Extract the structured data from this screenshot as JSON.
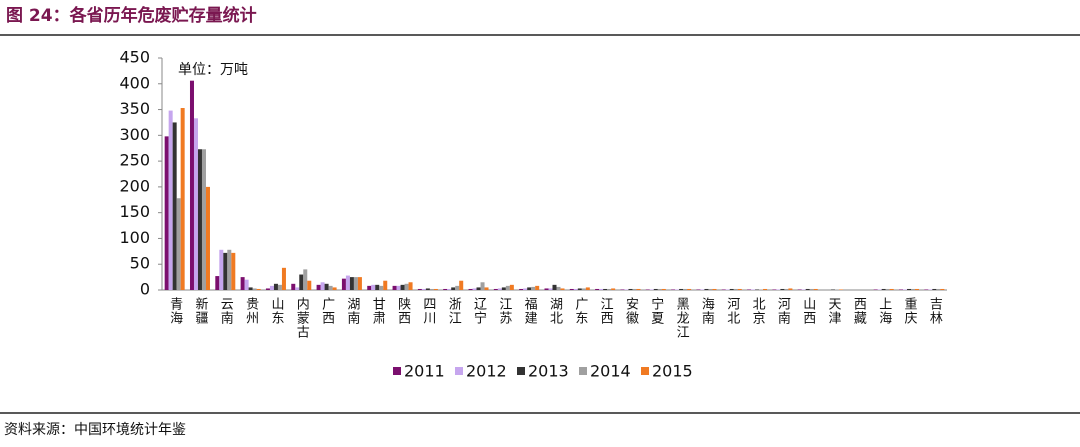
{
  "header": {
    "title": "图 24：各省历年危废贮存量统计"
  },
  "chart_data": {
    "type": "bar",
    "annotation": "单位：万吨",
    "categories": [
      "青海",
      "新疆",
      "云南",
      "贵州",
      "山东",
      "内蒙古",
      "广西",
      "湖南",
      "甘肃",
      "陕西",
      "四川",
      "浙江",
      "辽宁",
      "江苏",
      "福建",
      "湖北",
      "广东",
      "江西",
      "安徽",
      "宁夏",
      "黑龙江",
      "海南",
      "河北",
      "北京",
      "河南",
      "山西",
      "天津",
      "西藏",
      "上海",
      "重庆",
      "吉林"
    ],
    "series": [
      {
        "name": "2011",
        "color": "#7b0f6e",
        "values": [
          298,
          406,
          27,
          25,
          3,
          12,
          10,
          22,
          8,
          8,
          2,
          2,
          2,
          2,
          2,
          3,
          2,
          2,
          1,
          1,
          1,
          1,
          1,
          1,
          1,
          1,
          0,
          0,
          1,
          1,
          1
        ]
      },
      {
        "name": "2012",
        "color": "#c6a6ee",
        "values": [
          348,
          333,
          78,
          20,
          8,
          5,
          15,
          28,
          10,
          8,
          2,
          2,
          3,
          3,
          3,
          3,
          2,
          2,
          1,
          1,
          1,
          1,
          1,
          1,
          1,
          1,
          0,
          0,
          1,
          1,
          1
        ]
      },
      {
        "name": "2013",
        "color": "#333333",
        "values": [
          325,
          273,
          72,
          5,
          12,
          30,
          12,
          25,
          10,
          10,
          3,
          5,
          5,
          5,
          5,
          10,
          3,
          2,
          2,
          2,
          2,
          2,
          2,
          1,
          2,
          2,
          1,
          0,
          2,
          2,
          2
        ]
      },
      {
        "name": "2014",
        "color": "#a0a0a0",
        "values": [
          178,
          273,
          78,
          3,
          10,
          40,
          8,
          25,
          8,
          12,
          2,
          8,
          15,
          8,
          6,
          6,
          3,
          2,
          2,
          2,
          2,
          2,
          2,
          1,
          2,
          2,
          1,
          0,
          2,
          2,
          2
        ]
      },
      {
        "name": "2015",
        "color": "#f07a22",
        "values": [
          353,
          200,
          72,
          2,
          43,
          18,
          5,
          25,
          18,
          15,
          2,
          18,
          5,
          10,
          8,
          3,
          5,
          3,
          2,
          2,
          2,
          2,
          2,
          2,
          3,
          2,
          1,
          0,
          2,
          2,
          2
        ]
      }
    ],
    "ylim": [
      0,
      450
    ],
    "yticks": [
      0,
      50,
      100,
      150,
      200,
      250,
      300,
      350,
      400,
      450
    ],
    "legend": "bottom"
  },
  "footer": {
    "source": "资料来源：中国环境统计年鉴"
  }
}
